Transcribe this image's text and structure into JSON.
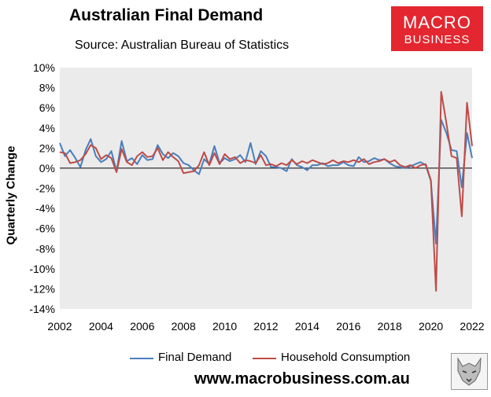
{
  "header": {
    "title": "Australian Final Demand",
    "subtitle": "Source: Australian Bureau of Statistics",
    "logo_line1": "MACRO",
    "logo_line2": "BUSINESS"
  },
  "footer": {
    "url": "www.macrobusiness.com.au"
  },
  "colors": {
    "final_demand": "#4a7ebb",
    "household": "#be4b48",
    "plot_bg": "#ebebeb"
  },
  "chart_data": {
    "type": "line",
    "title": "Australian Final Demand",
    "ylabel": "Quarterly Change",
    "xlabel": "",
    "ylim": [
      -14,
      10
    ],
    "xlim": [
      2002,
      2022
    ],
    "y_ticks": [
      "10%",
      "8%",
      "6%",
      "4%",
      "2%",
      "0%",
      "-2%",
      "-4%",
      "-6%",
      "-8%",
      "-10%",
      "-12%",
      "-14%"
    ],
    "x_ticks": [
      "2002",
      "2004",
      "2006",
      "2008",
      "2010",
      "2012",
      "2014",
      "2016",
      "2018",
      "2020",
      "2022"
    ],
    "legend": "bottom",
    "grid": false,
    "series": [
      {
        "name": "Final Demand",
        "color": "#4a7ebb",
        "values": [
          [
            2002.0,
            2.5
          ],
          [
            2002.25,
            1.2
          ],
          [
            2002.5,
            1.8
          ],
          [
            2002.75,
            1.0
          ],
          [
            2003.0,
            0.1
          ],
          [
            2003.25,
            1.8
          ],
          [
            2003.5,
            2.9
          ],
          [
            2003.75,
            1.2
          ],
          [
            2004.0,
            0.6
          ],
          [
            2004.25,
            0.9
          ],
          [
            2004.5,
            1.7
          ],
          [
            2004.75,
            -0.3
          ],
          [
            2005.0,
            2.7
          ],
          [
            2005.25,
            0.7
          ],
          [
            2005.5,
            1.0
          ],
          [
            2005.75,
            0.4
          ],
          [
            2006.0,
            1.3
          ],
          [
            2006.25,
            0.8
          ],
          [
            2006.5,
            0.9
          ],
          [
            2006.75,
            2.3
          ],
          [
            2007.0,
            1.4
          ],
          [
            2007.25,
            1.0
          ],
          [
            2007.5,
            1.5
          ],
          [
            2007.75,
            1.2
          ],
          [
            2008.0,
            0.5
          ],
          [
            2008.25,
            0.3
          ],
          [
            2008.5,
            -0.2
          ],
          [
            2008.75,
            -0.6
          ],
          [
            2009.0,
            0.9
          ],
          [
            2009.25,
            0.4
          ],
          [
            2009.5,
            2.2
          ],
          [
            2009.75,
            0.5
          ],
          [
            2010.0,
            1.0
          ],
          [
            2010.25,
            0.7
          ],
          [
            2010.5,
            0.9
          ],
          [
            2010.75,
            1.3
          ],
          [
            2011.0,
            0.6
          ],
          [
            2011.25,
            2.5
          ],
          [
            2011.5,
            0.4
          ],
          [
            2011.75,
            1.7
          ],
          [
            2012.0,
            1.2
          ],
          [
            2012.25,
            0.1
          ],
          [
            2012.5,
            0.1
          ],
          [
            2012.75,
            0.0
          ],
          [
            2013.0,
            -0.3
          ],
          [
            2013.25,
            0.9
          ],
          [
            2013.5,
            0.3
          ],
          [
            2013.75,
            0.1
          ],
          [
            2014.0,
            -0.2
          ],
          [
            2014.25,
            0.3
          ],
          [
            2014.5,
            0.3
          ],
          [
            2014.75,
            0.5
          ],
          [
            2015.0,
            0.2
          ],
          [
            2015.25,
            0.3
          ],
          [
            2015.5,
            0.3
          ],
          [
            2015.75,
            0.6
          ],
          [
            2016.0,
            0.3
          ],
          [
            2016.25,
            0.2
          ],
          [
            2016.5,
            1.1
          ],
          [
            2016.75,
            0.6
          ],
          [
            2017.0,
            0.7
          ],
          [
            2017.25,
            1.0
          ],
          [
            2017.5,
            0.8
          ],
          [
            2017.75,
            0.9
          ],
          [
            2018.0,
            0.5
          ],
          [
            2018.25,
            0.2
          ],
          [
            2018.5,
            0.1
          ],
          [
            2018.75,
            0.0
          ],
          [
            2019.0,
            0.2
          ],
          [
            2019.25,
            0.4
          ],
          [
            2019.5,
            0.6
          ],
          [
            2019.75,
            0.3
          ],
          [
            2020.0,
            -1.3
          ],
          [
            2020.25,
            -7.5
          ],
          [
            2020.5,
            4.8
          ],
          [
            2020.75,
            3.5
          ],
          [
            2021.0,
            1.8
          ],
          [
            2021.25,
            1.7
          ],
          [
            2021.5,
            -1.9
          ],
          [
            2021.75,
            3.5
          ],
          [
            2022.0,
            1.0
          ]
        ]
      },
      {
        "name": "Household Consumption",
        "color": "#be4b48",
        "values": [
          [
            2002.0,
            1.6
          ],
          [
            2002.25,
            1.5
          ],
          [
            2002.5,
            0.5
          ],
          [
            2002.75,
            0.6
          ],
          [
            2003.0,
            0.8
          ],
          [
            2003.25,
            1.4
          ],
          [
            2003.5,
            2.3
          ],
          [
            2003.75,
            2.0
          ],
          [
            2004.0,
            0.9
          ],
          [
            2004.25,
            1.3
          ],
          [
            2004.5,
            1.0
          ],
          [
            2004.75,
            -0.4
          ],
          [
            2005.0,
            1.9
          ],
          [
            2005.25,
            0.6
          ],
          [
            2005.5,
            0.3
          ],
          [
            2005.75,
            1.2
          ],
          [
            2006.0,
            1.6
          ],
          [
            2006.25,
            1.1
          ],
          [
            2006.5,
            1.2
          ],
          [
            2006.75,
            2.0
          ],
          [
            2007.0,
            0.8
          ],
          [
            2007.25,
            1.6
          ],
          [
            2007.5,
            1.1
          ],
          [
            2007.75,
            0.7
          ],
          [
            2008.0,
            -0.5
          ],
          [
            2008.25,
            -0.4
          ],
          [
            2008.5,
            -0.3
          ],
          [
            2008.75,
            0.3
          ],
          [
            2009.0,
            1.6
          ],
          [
            2009.25,
            0.3
          ],
          [
            2009.5,
            1.5
          ],
          [
            2009.75,
            0.4
          ],
          [
            2010.0,
            1.4
          ],
          [
            2010.25,
            0.9
          ],
          [
            2010.5,
            1.1
          ],
          [
            2010.75,
            0.5
          ],
          [
            2011.0,
            0.8
          ],
          [
            2011.25,
            0.7
          ],
          [
            2011.5,
            0.5
          ],
          [
            2011.75,
            1.3
          ],
          [
            2012.0,
            0.3
          ],
          [
            2012.25,
            0.4
          ],
          [
            2012.5,
            0.2
          ],
          [
            2012.75,
            0.5
          ],
          [
            2013.0,
            0.3
          ],
          [
            2013.25,
            0.8
          ],
          [
            2013.5,
            0.4
          ],
          [
            2013.75,
            0.7
          ],
          [
            2014.0,
            0.5
          ],
          [
            2014.25,
            0.8
          ],
          [
            2014.5,
            0.6
          ],
          [
            2014.75,
            0.4
          ],
          [
            2015.0,
            0.5
          ],
          [
            2015.25,
            0.8
          ],
          [
            2015.5,
            0.5
          ],
          [
            2015.75,
            0.7
          ],
          [
            2016.0,
            0.6
          ],
          [
            2016.25,
            0.8
          ],
          [
            2016.5,
            0.6
          ],
          [
            2016.75,
            0.9
          ],
          [
            2017.0,
            0.4
          ],
          [
            2017.25,
            0.6
          ],
          [
            2017.5,
            0.7
          ],
          [
            2017.75,
            0.9
          ],
          [
            2018.0,
            0.6
          ],
          [
            2018.25,
            0.8
          ],
          [
            2018.5,
            0.3
          ],
          [
            2018.75,
            0.1
          ],
          [
            2019.0,
            0.3
          ],
          [
            2019.25,
            0.0
          ],
          [
            2019.5,
            0.3
          ],
          [
            2019.75,
            0.4
          ],
          [
            2020.0,
            -1.2
          ],
          [
            2020.25,
            -12.2
          ],
          [
            2020.5,
            7.6
          ],
          [
            2020.75,
            4.5
          ],
          [
            2021.0,
            1.2
          ],
          [
            2021.25,
            1.0
          ],
          [
            2021.5,
            -4.8
          ],
          [
            2021.75,
            6.5
          ],
          [
            2022.0,
            2.2
          ],
          [
            2022.25,
            2.2
          ]
        ]
      }
    ]
  }
}
